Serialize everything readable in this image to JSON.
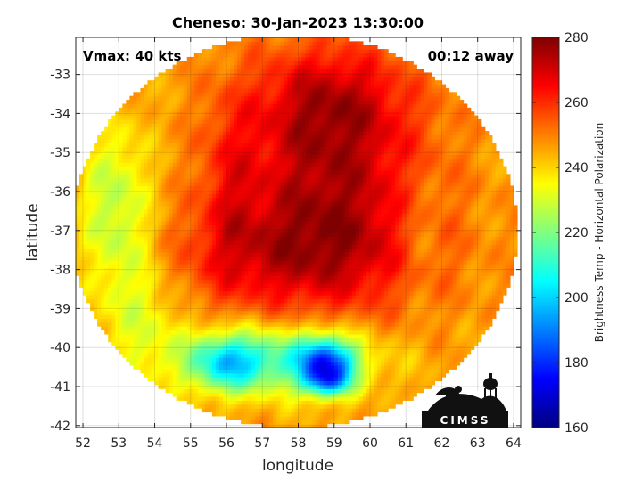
{
  "chart_data": {
    "type": "heatmap",
    "title": "Cheneso: 30-Jan-2023 13:30:00",
    "xlabel": "longitude",
    "ylabel": "latitude",
    "xlim": [
      51.8,
      64.2
    ],
    "ylim": [
      -42.05,
      -32.05
    ],
    "x_ticks": [
      52,
      53,
      54,
      55,
      56,
      57,
      58,
      59,
      60,
      61,
      62,
      63,
      64
    ],
    "y_ticks": [
      -33,
      -34,
      -35,
      -36,
      -37,
      -38,
      -39,
      -40,
      -41,
      -42
    ],
    "grid": true,
    "annotations": {
      "left": "Vmax: 40 kts",
      "right": "00:12 away"
    },
    "colorbar": {
      "label": "Brightness Temp - Horizontal Polarization",
      "min": 160,
      "max": 280,
      "ticks": [
        280,
        260,
        240,
        220,
        200,
        180,
        160
      ],
      "colormap": "jet"
    },
    "swath": {
      "center": [
        57.9,
        -37.0
      ],
      "radius_lon": 6.2,
      "radius_lat": 5.05
    },
    "field": {
      "background": 246,
      "features": [
        {
          "name": "cold core",
          "lon": 58.9,
          "lat": -35.9,
          "slon": 1.9,
          "slat": 1.9,
          "amp": 26
        },
        {
          "name": "cold band",
          "lon": 57.6,
          "lat": -37.7,
          "slon": 2.6,
          "slat": 1.0,
          "amp": 16
        },
        {
          "name": "cold north",
          "lon": 58.9,
          "lat": -33.6,
          "slon": 1.5,
          "slat": 1.0,
          "amp": 18
        },
        {
          "name": "cold filament",
          "lon": 56.1,
          "lat": -35.6,
          "slon": 0.55,
          "slat": 1.6,
          "amp": 10
        },
        {
          "name": "warm west",
          "lon": 52.9,
          "lat": -36.5,
          "slon": 0.7,
          "slat": 1.6,
          "amp": -20
        },
        {
          "name": "warm west lower",
          "lon": 53.7,
          "lat": -39.2,
          "slon": 0.8,
          "slat": 1.3,
          "amp": -12
        },
        {
          "name": "warm east",
          "lon": 61.3,
          "lat": -37.0,
          "slon": 0.45,
          "slat": 1.0,
          "amp": -8
        },
        {
          "name": "south rain",
          "lon": 57.4,
          "lat": -40.3,
          "slon": 1.8,
          "slat": 0.6,
          "amp": -30
        },
        {
          "name": "south rain west",
          "lon": 56.0,
          "lat": -40.4,
          "slon": 0.7,
          "slat": 0.5,
          "amp": -28
        },
        {
          "name": "south rain east",
          "lon": 58.8,
          "lat": -40.4,
          "slon": 0.55,
          "slat": 0.45,
          "amp": -50
        },
        {
          "name": "south rain east low",
          "lon": 58.8,
          "lat": -40.9,
          "slon": 0.45,
          "slat": 0.25,
          "amp": -25
        }
      ]
    },
    "logo": "CIMSS"
  }
}
